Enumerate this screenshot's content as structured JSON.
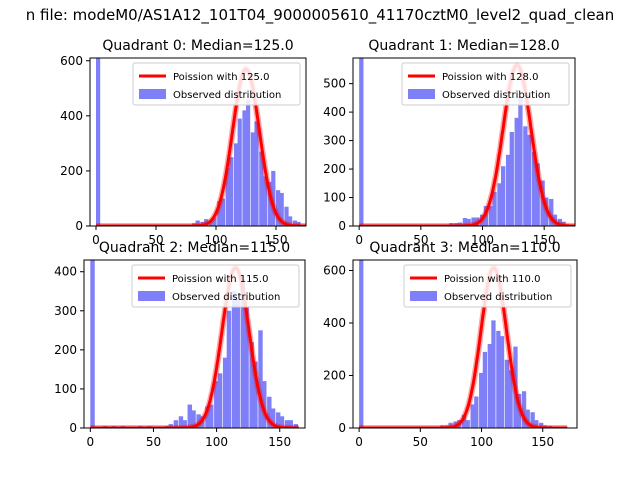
{
  "figure": {
    "suptitle": "n file: modeM0/AS1A12_101T04_9000005610_41170cztM0_level2_quad_clean"
  },
  "colors": {
    "hist": "#7f7ff8",
    "curve": "#ff0000",
    "curve_alpha": 0.35,
    "axes": "#000000",
    "legend_border": "#cccccc"
  },
  "chart_data": [
    {
      "type": "bar",
      "title": "Quadrant 0: Median=125.0",
      "xlim": [
        -5,
        175
      ],
      "ylim": [
        0,
        610
      ],
      "xticks": [
        0,
        50,
        100,
        150
      ],
      "yticks": [
        0,
        200,
        400,
        600
      ],
      "bin_width": 3.5,
      "bins": [
        [
          0,
          610
        ],
        [
          52,
          5
        ],
        [
          59,
          3
        ],
        [
          62,
          3
        ],
        [
          66,
          3
        ],
        [
          73,
          5
        ],
        [
          80,
          10
        ],
        [
          83,
          20
        ],
        [
          87,
          15
        ],
        [
          90,
          25
        ],
        [
          94,
          20
        ],
        [
          97,
          30
        ],
        [
          101,
          90
        ],
        [
          104,
          100
        ],
        [
          108,
          210
        ],
        [
          111,
          250
        ],
        [
          115,
          300
        ],
        [
          118,
          390
        ],
        [
          122,
          420
        ],
        [
          125,
          460
        ],
        [
          129,
          340
        ],
        [
          132,
          380
        ],
        [
          136,
          270
        ],
        [
          139,
          180
        ],
        [
          143,
          160
        ],
        [
          146,
          200
        ],
        [
          150,
          130
        ],
        [
          153,
          120
        ],
        [
          157,
          70
        ],
        [
          160,
          35
        ],
        [
          164,
          20
        ],
        [
          167,
          15
        ]
      ],
      "legend": {
        "poisson": "Poission with 125.0",
        "observed": "Observed distribution"
      },
      "curve": {
        "mean": 125.0,
        "peak": 570,
        "x_range": [
          0,
          175
        ]
      }
    },
    {
      "type": "bar",
      "title": "Quadrant 1: Median=128.0",
      "xlim": [
        -5,
        175
      ],
      "ylim": [
        0,
        590
      ],
      "xticks": [
        0,
        50,
        100,
        150
      ],
      "yticks": [
        0,
        100,
        200,
        300,
        400,
        500
      ],
      "bin_width": 3.5,
      "bins": [
        [
          0,
          590
        ],
        [
          52,
          5
        ],
        [
          59,
          4
        ],
        [
          66,
          5
        ],
        [
          73,
          10
        ],
        [
          77,
          10
        ],
        [
          80,
          12
        ],
        [
          84,
          28
        ],
        [
          87,
          25
        ],
        [
          91,
          30
        ],
        [
          94,
          30
        ],
        [
          98,
          40
        ],
        [
          101,
          70
        ],
        [
          105,
          70
        ],
        [
          108,
          120
        ],
        [
          112,
          150
        ],
        [
          115,
          210
        ],
        [
          119,
          250
        ],
        [
          122,
          330
        ],
        [
          126,
          380
        ],
        [
          129,
          450
        ],
        [
          133,
          350
        ],
        [
          136,
          320
        ],
        [
          140,
          260
        ],
        [
          143,
          220
        ],
        [
          147,
          160
        ],
        [
          150,
          100
        ],
        [
          154,
          95
        ],
        [
          157,
          40
        ],
        [
          161,
          25
        ],
        [
          164,
          15
        ],
        [
          168,
          5
        ]
      ],
      "legend": {
        "poisson": "Poission with 128.0",
        "observed": "Observed distribution"
      },
      "curve": {
        "mean": 128.0,
        "peak": 565,
        "x_range": [
          0,
          175
        ]
      }
    },
    {
      "type": "bar",
      "title": "Quadrant 2: Median=115.0",
      "xlim": [
        -5,
        170
      ],
      "ylim": [
        0,
        430
      ],
      "xticks": [
        0,
        50,
        100,
        150
      ],
      "yticks": [
        0,
        100,
        200,
        300,
        400
      ],
      "bin_width": 3.5,
      "bins": [
        [
          0,
          430
        ],
        [
          10,
          5
        ],
        [
          17,
          5
        ],
        [
          24,
          5
        ],
        [
          31,
          3
        ],
        [
          38,
          5
        ],
        [
          45,
          5
        ],
        [
          52,
          3
        ],
        [
          59,
          5
        ],
        [
          62,
          10
        ],
        [
          66,
          20
        ],
        [
          70,
          30
        ],
        [
          73,
          20
        ],
        [
          77,
          60
        ],
        [
          80,
          45
        ],
        [
          84,
          35
        ],
        [
          87,
          30
        ],
        [
          91,
          55
        ],
        [
          94,
          60
        ],
        [
          98,
          120
        ],
        [
          101,
          140
        ],
        [
          105,
          180
        ],
        [
          108,
          300
        ],
        [
          112,
          350
        ],
        [
          115,
          330
        ],
        [
          119,
          380
        ],
        [
          122,
          310
        ],
        [
          126,
          220
        ],
        [
          129,
          170
        ],
        [
          133,
          250
        ],
        [
          136,
          120
        ],
        [
          140,
          80
        ],
        [
          143,
          50
        ],
        [
          147,
          40
        ],
        [
          150,
          30
        ],
        [
          154,
          20
        ],
        [
          157,
          20
        ],
        [
          161,
          10
        ]
      ],
      "legend": {
        "poisson": "Poission with 115.0",
        "observed": "Observed distribution"
      },
      "curve": {
        "mean": 115.0,
        "peak": 410,
        "x_range": [
          0,
          165
        ]
      }
    },
    {
      "type": "bar",
      "title": "Quadrant 3: Median=110.0",
      "xlim": [
        -5,
        178
      ],
      "ylim": [
        0,
        640
      ],
      "xticks": [
        0,
        50,
        100,
        150
      ],
      "yticks": [
        0,
        200,
        400,
        600
      ],
      "bin_width": 3.5,
      "bins": [
        [
          0,
          640
        ],
        [
          52,
          5
        ],
        [
          59,
          5
        ],
        [
          66,
          10
        ],
        [
          70,
          10
        ],
        [
          73,
          20
        ],
        [
          77,
          25
        ],
        [
          80,
          30
        ],
        [
          84,
          50
        ],
        [
          87,
          30
        ],
        [
          91,
          90
        ],
        [
          94,
          120
        ],
        [
          98,
          210
        ],
        [
          101,
          290
        ],
        [
          105,
          320
        ],
        [
          108,
          410
        ],
        [
          112,
          370
        ],
        [
          115,
          350
        ],
        [
          119,
          260
        ],
        [
          122,
          220
        ],
        [
          126,
          310
        ],
        [
          129,
          130
        ],
        [
          133,
          140
        ],
        [
          136,
          70
        ],
        [
          140,
          60
        ],
        [
          143,
          30
        ],
        [
          147,
          20
        ],
        [
          150,
          10
        ],
        [
          154,
          8
        ]
      ],
      "legend": {
        "poisson": "Poission with 110.0",
        "observed": "Observed distribution"
      },
      "curve": {
        "mean": 110.0,
        "peak": 610,
        "x_range": [
          0,
          170
        ]
      }
    }
  ]
}
